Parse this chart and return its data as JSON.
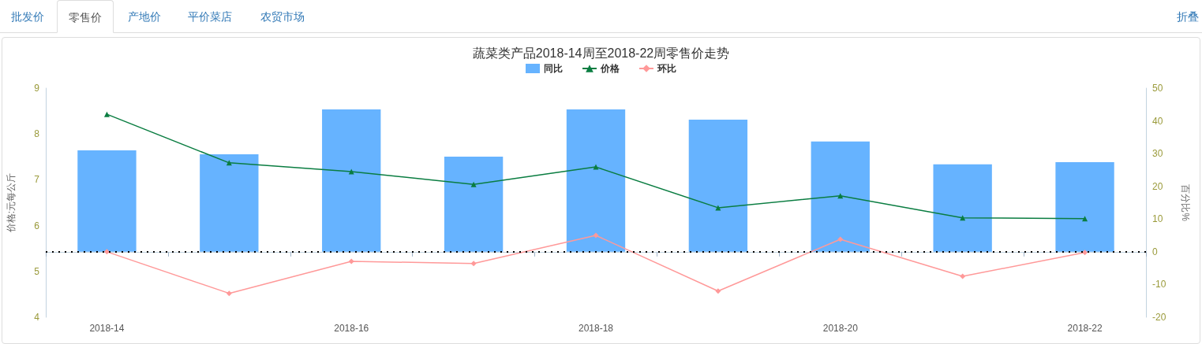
{
  "chart_data": {
    "type": "bar",
    "title": "蔬菜类产品2018-14周至2018-22周零售价走势",
    "ylabel": "价格:元每公斤",
    "y2label": "百分比%",
    "annotations": [
      "批发价",
      "零售价",
      "产地价",
      "平价菜店",
      "农贸市场",
      "折叠"
    ],
    "categories": [
      "2018-14",
      null,
      "2018-16",
      null,
      "2018-18",
      null,
      "2018-20",
      null,
      "2018-22"
    ],
    "series": [
      {
        "name": "同比",
        "axis": "y2",
        "color": "#66b3ff",
        "values": [
          31.0,
          29.8,
          43.5,
          29.1,
          43.5,
          40.4,
          33.7,
          26.7,
          27.4
        ]
      },
      {
        "name": "价格",
        "type": "line",
        "color": "#0a7d41",
        "marker": "triangle",
        "values": [
          8.43,
          7.37,
          7.18,
          6.9,
          7.28,
          6.39,
          6.65,
          6.17,
          6.15
        ]
      },
      {
        "name": "环比",
        "type": "line",
        "axis": "y2",
        "color": "#ff9999",
        "marker": "diamond",
        "values": [
          0,
          -12.7,
          -2.9,
          -3.6,
          5.0,
          -12.0,
          3.8,
          -7.5,
          -0.2
        ]
      }
    ],
    "ylim": [
      4,
      9
    ],
    "yticks": [
      4,
      5,
      6,
      7,
      8,
      9
    ],
    "y2lim": [
      -20,
      50
    ],
    "y2ticks": [
      -20,
      -10,
      0,
      10,
      20,
      30,
      40,
      50
    ],
    "ref_lines": [
      {
        "axis": "y2",
        "value": 0,
        "color": "#000000",
        "line_style": "dotted"
      }
    ],
    "grid": false,
    "legend": "top"
  }
}
